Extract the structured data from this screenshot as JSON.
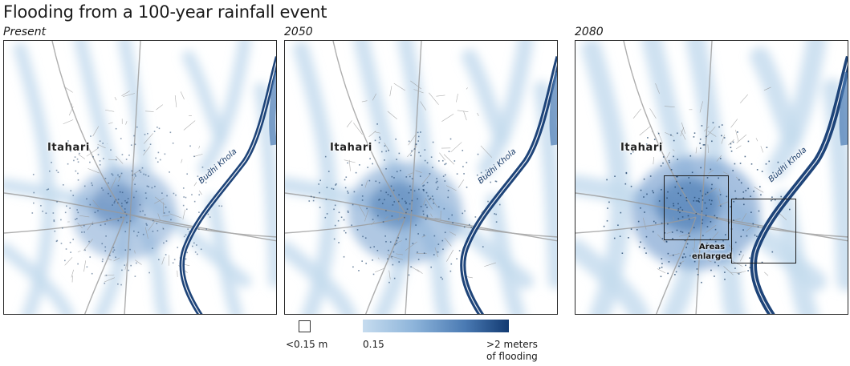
{
  "title": "Flooding from a 100-year rainfall event",
  "panels": [
    {
      "label": "Present",
      "flood_level": 0.35
    },
    {
      "label": "2050",
      "flood_level": 0.55
    },
    {
      "label": "2080",
      "flood_level": 0.85
    }
  ],
  "map": {
    "city_name": "Itahari",
    "river_name": "Budhi Khola",
    "enlarged_label_line1": "Areas",
    "enlarged_label_line2": "enlarged"
  },
  "legend": {
    "below_label": "<0.15 m",
    "min_label": "0.15",
    "max_label_line1": ">2 meters",
    "max_label_line2": "of flooding"
  },
  "colors": {
    "flood_light": "#c6dcef",
    "flood_mid": "#4a7ab3",
    "flood_dark": "#123a72",
    "roads": "#9a9a9a"
  }
}
